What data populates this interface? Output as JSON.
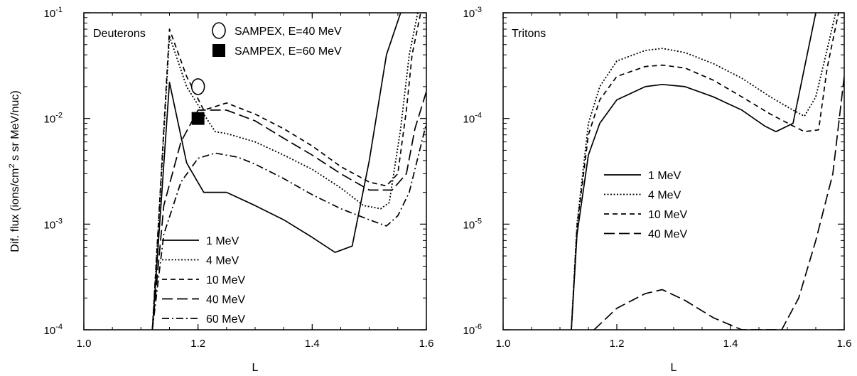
{
  "figure": {
    "ylabel": "Dif. flux  (ions/cm² s sr MeV/nuc)",
    "ylabel_parts": [
      "Dif. flux  (ions/cm",
      "2",
      " s sr MeV/nuc)"
    ]
  },
  "chart_data": [
    {
      "type": "line",
      "panel_label": "Deuterons",
      "xlabel": "L",
      "ylabel": "Dif. flux  (ions/cm² s sr MeV/nuc)",
      "xlim": [
        1.0,
        1.6
      ],
      "ylim": [
        0.0001,
        0.1
      ],
      "yscale": "log",
      "x_ticks": [
        "1.0",
        "1.2",
        "1.4",
        "1.6"
      ],
      "y_ticks": [
        {
          "base": "10",
          "exp": "-4"
        },
        {
          "base": "10",
          "exp": "-3"
        },
        {
          "base": "10",
          "exp": "-2"
        },
        {
          "base": "10",
          "exp": "-1"
        }
      ],
      "series": [
        {
          "name": "1 MeV",
          "style": "solid",
          "points": [
            [
              1.12,
              0.0001
            ],
            [
              1.15,
              0.022
            ],
            [
              1.18,
              0.0038
            ],
            [
              1.21,
              0.002
            ],
            [
              1.25,
              0.002
            ],
            [
              1.3,
              0.0015
            ],
            [
              1.35,
              0.0011
            ],
            [
              1.4,
              0.00075
            ],
            [
              1.44,
              0.00054
            ],
            [
              1.47,
              0.00062
            ],
            [
              1.5,
              0.004
            ],
            [
              1.53,
              0.04
            ],
            [
              1.555,
              0.1
            ]
          ]
        },
        {
          "name": "4 MeV",
          "style": "dotted",
          "points": [
            [
              1.12,
              0.0001
            ],
            [
              1.15,
              0.06
            ],
            [
              1.18,
              0.02
            ],
            [
              1.21,
              0.011
            ],
            [
              1.23,
              0.0075
            ],
            [
              1.25,
              0.0072
            ],
            [
              1.3,
              0.006
            ],
            [
              1.35,
              0.0045
            ],
            [
              1.4,
              0.0033
            ],
            [
              1.45,
              0.0022
            ],
            [
              1.49,
              0.0015
            ],
            [
              1.52,
              0.0014
            ],
            [
              1.535,
              0.0016
            ],
            [
              1.555,
              0.008
            ],
            [
              1.57,
              0.04
            ],
            [
              1.585,
              0.1
            ]
          ]
        },
        {
          "name": "10 MeV",
          "style": "dashed",
          "points": [
            [
              1.12,
              0.0001
            ],
            [
              1.15,
              0.07
            ],
            [
              1.18,
              0.025
            ],
            [
              1.21,
              0.012
            ],
            [
              1.25,
              0.014
            ],
            [
              1.3,
              0.011
            ],
            [
              1.35,
              0.008
            ],
            [
              1.4,
              0.0055
            ],
            [
              1.45,
              0.0035
            ],
            [
              1.5,
              0.0025
            ],
            [
              1.53,
              0.0023
            ],
            [
              1.55,
              0.003
            ],
            [
              1.565,
              0.012
            ],
            [
              1.575,
              0.04
            ],
            [
              1.59,
              0.1
            ]
          ]
        },
        {
          "name": "40 MeV",
          "style": "longdash",
          "points": [
            [
              1.12,
              0.0001
            ],
            [
              1.14,
              0.0015
            ],
            [
              1.17,
              0.006
            ],
            [
              1.2,
              0.012
            ],
            [
              1.25,
              0.012
            ],
            [
              1.3,
              0.0095
            ],
            [
              1.35,
              0.0065
            ],
            [
              1.4,
              0.0045
            ],
            [
              1.45,
              0.003
            ],
            [
              1.5,
              0.0021
            ],
            [
              1.54,
              0.0021
            ],
            [
              1.565,
              0.003
            ],
            [
              1.58,
              0.008
            ],
            [
              1.6,
              0.018
            ]
          ]
        },
        {
          "name": "60 MeV",
          "style": "dashdot",
          "points": [
            [
              1.12,
              0.0001
            ],
            [
              1.14,
              0.0008
            ],
            [
              1.17,
              0.0025
            ],
            [
              1.2,
              0.0042
            ],
            [
              1.23,
              0.0047
            ],
            [
              1.27,
              0.0043
            ],
            [
              1.3,
              0.0037
            ],
            [
              1.35,
              0.0027
            ],
            [
              1.4,
              0.0019
            ],
            [
              1.45,
              0.0014
            ],
            [
              1.5,
              0.0011
            ],
            [
              1.53,
              0.00096
            ],
            [
              1.55,
              0.0012
            ],
            [
              1.57,
              0.002
            ],
            [
              1.6,
              0.009
            ]
          ]
        }
      ],
      "markers": [
        {
          "name": "SAMPEX, E=40 MeV",
          "symbol": "open-circle",
          "x": 1.2,
          "y": 0.02
        },
        {
          "name": "SAMPEX, E=60 MeV",
          "symbol": "filled-square",
          "x": 1.2,
          "y": 0.01
        }
      ],
      "legend": {
        "lines_position": "bottom-left",
        "markers_position": "top-center"
      }
    },
    {
      "type": "line",
      "panel_label": "Tritons",
      "xlabel": "L",
      "xlim": [
        1.0,
        1.6
      ],
      "ylim": [
        1e-06,
        0.001
      ],
      "yscale": "log",
      "x_ticks": [
        "1.0",
        "1.2",
        "1.4",
        "1.6"
      ],
      "y_ticks": [
        {
          "base": "10",
          "exp": "-6"
        },
        {
          "base": "10",
          "exp": "-5"
        },
        {
          "base": "10",
          "exp": "-4"
        },
        {
          "base": "10",
          "exp": "-3"
        }
      ],
      "series": [
        {
          "name": "1 MeV",
          "style": "solid",
          "points": [
            [
              1.12,
              1e-06
            ],
            [
              1.13,
              8e-06
            ],
            [
              1.15,
              4.5e-05
            ],
            [
              1.17,
              9e-05
            ],
            [
              1.2,
              0.00015
            ],
            [
              1.25,
              0.0002
            ],
            [
              1.28,
              0.00021
            ],
            [
              1.32,
              0.0002
            ],
            [
              1.37,
              0.00016
            ],
            [
              1.42,
              0.00012
            ],
            [
              1.46,
              8.5e-05
            ],
            [
              1.48,
              7.5e-05
            ],
            [
              1.51,
              9e-05
            ],
            [
              1.53,
              0.0003
            ],
            [
              1.55,
              0.001
            ]
          ]
        },
        {
          "name": "4 MeV",
          "style": "dotted",
          "points": [
            [
              1.12,
              1e-06
            ],
            [
              1.13,
              1e-05
            ],
            [
              1.15,
              9e-05
            ],
            [
              1.17,
              0.0002
            ],
            [
              1.2,
              0.00035
            ],
            [
              1.25,
              0.00044
            ],
            [
              1.28,
              0.00046
            ],
            [
              1.32,
              0.00042
            ],
            [
              1.37,
              0.00033
            ],
            [
              1.42,
              0.00024
            ],
            [
              1.47,
              0.00016
            ],
            [
              1.51,
              0.00012
            ],
            [
              1.53,
              0.000105
            ],
            [
              1.55,
              0.00016
            ],
            [
              1.57,
              0.00045
            ],
            [
              1.585,
              0.001
            ]
          ]
        },
        {
          "name": "10 MeV",
          "style": "dashed",
          "points": [
            [
              1.12,
              1e-06
            ],
            [
              1.13,
              9.5e-06
            ],
            [
              1.15,
              7e-05
            ],
            [
              1.17,
              0.00015
            ],
            [
              1.2,
              0.00025
            ],
            [
              1.25,
              0.00031
            ],
            [
              1.28,
              0.00032
            ],
            [
              1.32,
              0.0003
            ],
            [
              1.37,
              0.00023
            ],
            [
              1.42,
              0.00016
            ],
            [
              1.47,
              0.00011
            ],
            [
              1.51,
              8.5e-05
            ],
            [
              1.53,
              7.5e-05
            ],
            [
              1.555,
              7.8e-05
            ],
            [
              1.57,
              0.0003
            ],
            [
              1.59,
              0.001
            ]
          ]
        },
        {
          "name": "40 MeV",
          "style": "longdash",
          "points": [
            [
              1.16,
              1e-06
            ],
            [
              1.2,
              1.6e-06
            ],
            [
              1.25,
              2.2e-06
            ],
            [
              1.28,
              2.4e-06
            ],
            [
              1.32,
              1.9e-06
            ],
            [
              1.37,
              1.3e-06
            ],
            [
              1.42,
              1e-06
            ],
            [
              1.49,
              1e-06
            ],
            [
              1.52,
              2e-06
            ],
            [
              1.55,
              7e-06
            ],
            [
              1.58,
              3e-05
            ],
            [
              1.6,
              0.00025
            ]
          ]
        }
      ],
      "legend": {
        "lines_position": "center-left"
      }
    }
  ]
}
